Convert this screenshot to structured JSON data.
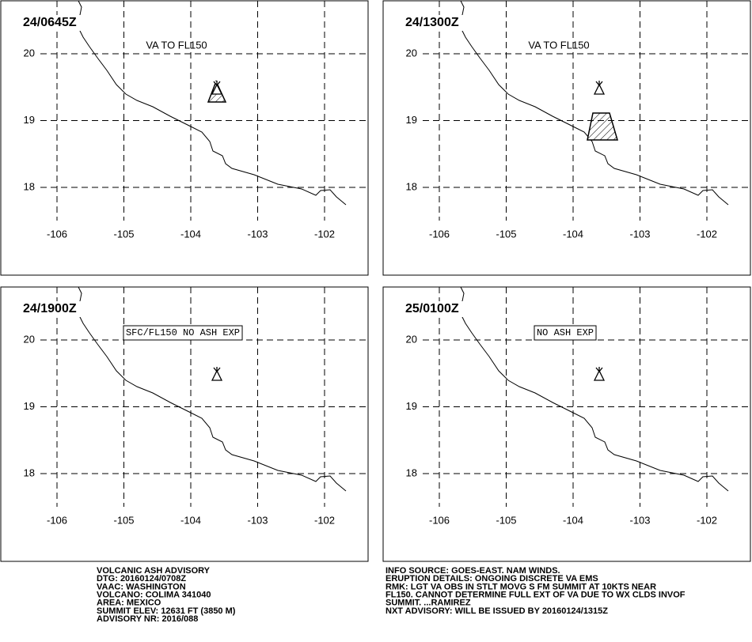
{
  "panels": [
    {
      "time": "24/0645Z",
      "note": "VA TO FL150"
    },
    {
      "time": "24/1300Z",
      "note": "VA TO FL150"
    },
    {
      "time": "24/1900Z",
      "note": "SFC/FL150 NO ASH EXP"
    },
    {
      "time": "25/0100Z",
      "note": "NO ASH EXP"
    }
  ],
  "lon_ticks": [
    -106,
    -105,
    -104,
    -103,
    -102
  ],
  "lat_ticks": [
    20,
    19,
    18
  ],
  "advisory_left": [
    "VOLCANIC ASH ADVISORY",
    "DTG: 20160124/0708Z",
    "VAAC: WASHINGTON",
    "VOLCANO: COLIMA 341040",
    "AREA: MEXICO",
    "SUMMIT ELEV: 12631 FT (3850 M)",
    "ADVISORY NR: 2016/088"
  ],
  "advisory_right": [
    "INFO SOURCE: GOES-EAST. NAM WINDS.",
    "ERUPTION DETAILS: ONGOING DISCRETE VA EMS",
    "RMK: LGT VA OBS IN STLT MOVG S FM SUMMIT AT 10KTS NEAR",
    "FL150. CANNOT DETERMINE FULL EXT OF VA DUE TO WX CLDS INVOF",
    "SUMMIT. ...RAMIREZ",
    "NXT ADVISORY: WILL BE ISSUED BY 20160124/1315Z"
  ]
}
